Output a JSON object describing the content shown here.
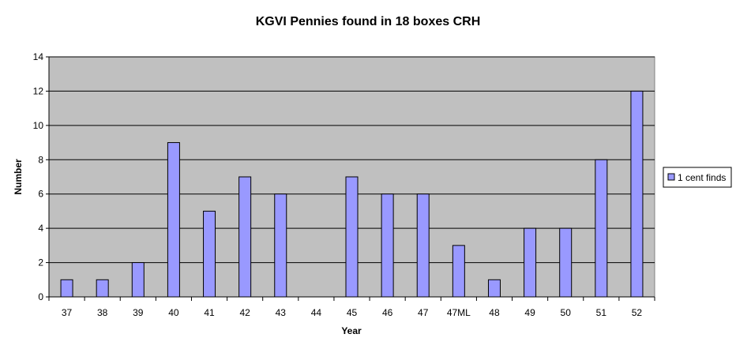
{
  "chart_data": {
    "type": "bar",
    "title": "KGVI Pennies found in 18 boxes CRH",
    "xlabel": "Year",
    "ylabel": "Number",
    "categories": [
      "37",
      "38",
      "39",
      "40",
      "41",
      "42",
      "43",
      "44",
      "45",
      "46",
      "47",
      "47ML",
      "48",
      "49",
      "50",
      "51",
      "52"
    ],
    "series": [
      {
        "name": "1 cent finds",
        "values": [
          1,
          1,
          2,
          9,
          5,
          7,
          6,
          0,
          7,
          6,
          6,
          3,
          1,
          4,
          4,
          8,
          12
        ]
      }
    ],
    "ylim": [
      0,
      14
    ],
    "yticks": [
      "0",
      "2",
      "4",
      "6",
      "8",
      "10",
      "12",
      "14"
    ],
    "grid": true,
    "legend_position": "right",
    "colors": {
      "plot_background": "#c0c0c0",
      "bar_fill": "#9999ff",
      "bar_stroke": "#000000",
      "gridline": "#000000"
    }
  }
}
